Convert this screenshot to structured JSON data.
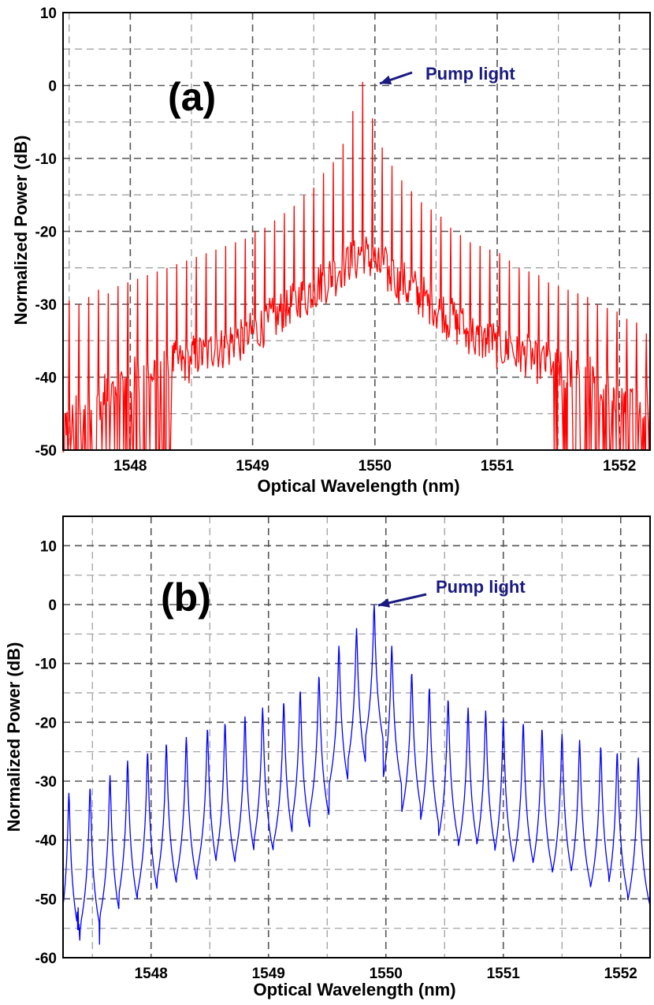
{
  "figure": {
    "line_color_a": "#ff0000",
    "line_color_b": "#0000ff",
    "annotation_color": "#1a1a80"
  },
  "chart_data": [
    {
      "panel": "(a)",
      "type": "line",
      "xlabel": "Optical Wavelength (nm)",
      "ylabel": "Normalized Power (dB)",
      "xlim": [
        1547.45,
        1552.25
      ],
      "ylim": [
        -50,
        10
      ],
      "xticks": [
        1548,
        1549,
        1550,
        1551,
        1552
      ],
      "yticks": [
        -50,
        -40,
        -30,
        -20,
        -10,
        0,
        10
      ],
      "grid": true,
      "annotation": {
        "text": "Pump light",
        "x": 1549.9,
        "y": 0.5
      },
      "comb_spacing_nm": 0.08,
      "series": [
        {
          "name": "Spectrum (a)",
          "peak_wavelengths": [
            1547.5,
            1547.58,
            1547.66,
            1547.74,
            1547.82,
            1547.9,
            1547.98,
            1548.06,
            1548.14,
            1548.22,
            1548.3,
            1548.38,
            1548.46,
            1548.54,
            1548.62,
            1548.7,
            1548.78,
            1548.86,
            1548.94,
            1549.02,
            1549.1,
            1549.18,
            1549.26,
            1549.34,
            1549.42,
            1549.5,
            1549.58,
            1549.66,
            1549.74,
            1549.82,
            1549.9,
            1549.98,
            1550.06,
            1550.14,
            1550.22,
            1550.3,
            1550.38,
            1550.46,
            1550.54,
            1550.62,
            1550.7,
            1550.78,
            1550.86,
            1550.94,
            1551.02,
            1551.1,
            1551.18,
            1551.26,
            1551.34,
            1551.42,
            1551.5,
            1551.58,
            1551.66,
            1551.74,
            1551.82,
            1551.9,
            1551.98,
            1552.06,
            1552.14,
            1552.22
          ],
          "peak_power_db": [
            -29.5,
            -30,
            -29,
            -28,
            -28.5,
            -27.5,
            -27,
            -26.5,
            -26,
            -25.5,
            -25,
            -24.5,
            -24,
            -23.5,
            -23,
            -22.5,
            -22,
            -21.5,
            -21,
            -20,
            -19.5,
            -18.5,
            -17.5,
            -16.5,
            -15,
            -14,
            -12,
            -10.5,
            -8,
            -3.5,
            0.5,
            -4.5,
            -8.5,
            -11,
            -13,
            -14.5,
            -16,
            -17,
            -18,
            -19.5,
            -20.5,
            -21.5,
            -22,
            -22.5,
            -23,
            -24,
            -25,
            -25.5,
            -26,
            -27,
            -27.5,
            -28,
            -28.5,
            -29,
            -30,
            -30.5,
            -31,
            -32,
            -32.5,
            -34
          ],
          "floor_power_db": [
            -46,
            -45,
            -44,
            -43,
            -42,
            -41,
            -41,
            -40,
            -40,
            -39,
            -39,
            -38,
            -38,
            -37,
            -37,
            -36,
            -36,
            -35,
            -35,
            -34,
            -33,
            -32,
            -31,
            -30,
            -29,
            -28,
            -27,
            -26,
            -25,
            -24,
            -23,
            -24,
            -25,
            -26,
            -27,
            -28,
            -29,
            -30,
            -31,
            -32,
            -33,
            -34,
            -35,
            -35,
            -36,
            -36,
            -37,
            -37,
            -38,
            -38,
            -39,
            -39,
            -40,
            -40,
            -41,
            -41,
            -42,
            -42,
            -43,
            -43
          ]
        }
      ]
    },
    {
      "panel": "(b)",
      "type": "line",
      "xlabel": "Optical Wavelength (nm)",
      "ylabel": "Normalized Power (dB)",
      "xlim": [
        1547.25,
        1552.25
      ],
      "ylim": [
        -60,
        15
      ],
      "xticks": [
        1548,
        1549,
        1550,
        1551,
        1552
      ],
      "yticks": [
        -60,
        -50,
        -40,
        -30,
        -20,
        -10,
        0,
        10
      ],
      "grid": true,
      "annotation": {
        "text": "Pump light",
        "x": 1549.9,
        "y": 0
      },
      "comb_spacing_nm": 0.16,
      "series": [
        {
          "name": "Spectrum (b)",
          "peak_wavelengths": [
            1547.3,
            1547.48,
            1547.65,
            1547.8,
            1547.97,
            1548.13,
            1548.3,
            1548.48,
            1548.63,
            1548.8,
            1548.95,
            1549.13,
            1549.27,
            1549.43,
            1549.6,
            1549.75,
            1549.9,
            1550.05,
            1550.22,
            1550.37,
            1550.53,
            1550.7,
            1550.85,
            1551.0,
            1551.17,
            1551.33,
            1551.5,
            1551.65,
            1551.83,
            1551.97,
            1552.15
          ],
          "peak_power_db": [
            -32,
            -31,
            -29,
            -26.5,
            -25,
            -23.5,
            -22.5,
            -21,
            -20,
            -19,
            -17.5,
            -16.5,
            -14.5,
            -12,
            -7,
            -4,
            0,
            -7,
            -11.5,
            -14,
            -16,
            -17.5,
            -18,
            -19.5,
            -20,
            -21,
            -22,
            -23,
            -24,
            -25,
            -26
          ]
        }
      ]
    }
  ]
}
